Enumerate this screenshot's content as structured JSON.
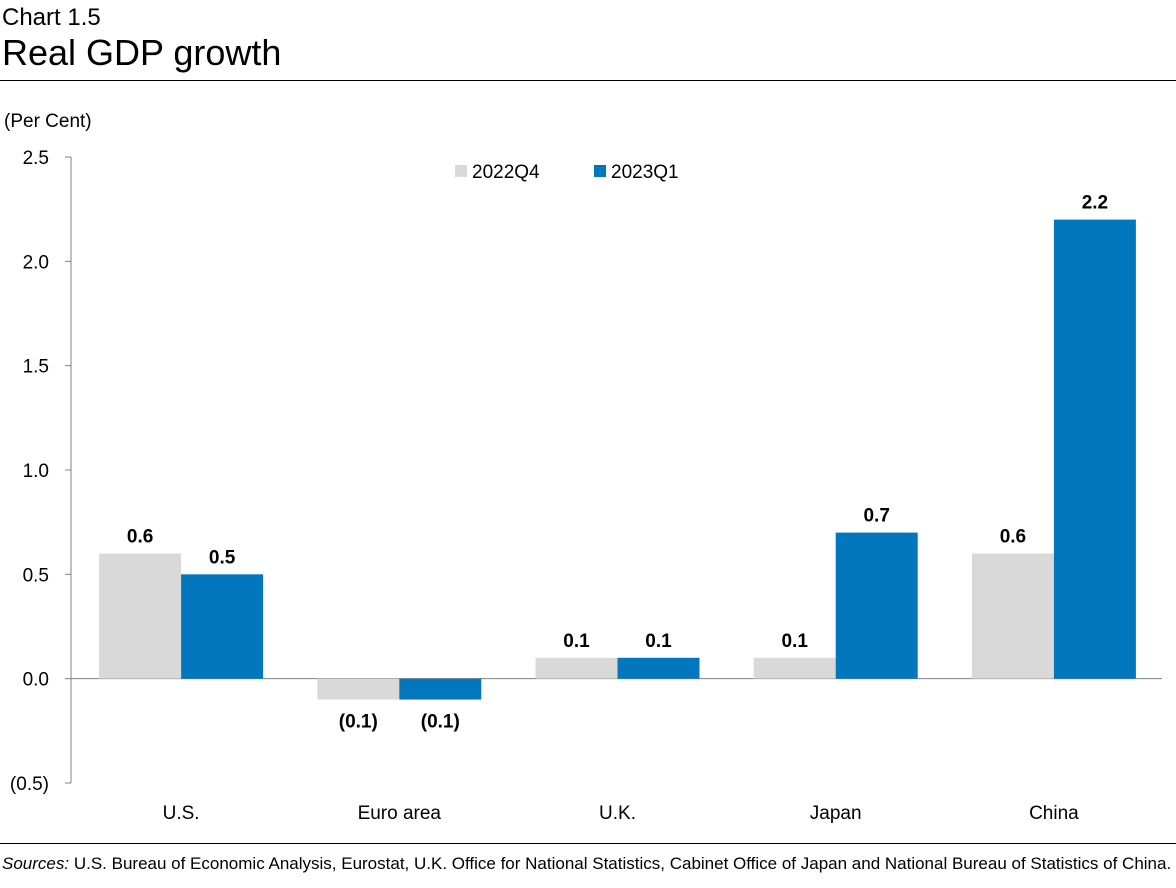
{
  "header": {
    "chart_number": "Chart 1.5",
    "title": "Real GDP growth"
  },
  "footer": {
    "sources_lead": "Sources:",
    "sources_text": "U.S. Bureau of Economic Analysis, Eurostat, U.K. Office for National Statistics, Cabinet Office of Japan and National Bureau of Statistics of China."
  },
  "chart_data": {
    "type": "bar",
    "title": "Real GDP growth",
    "ylabel": "(Per Cent)",
    "xlabel": "",
    "ylim": [
      -0.5,
      2.5
    ],
    "yticks": [
      2.5,
      2.0,
      1.5,
      1.0,
      0.5,
      0.0,
      -0.5
    ],
    "ytick_labels": [
      "2.5",
      "2.0",
      "1.5",
      "1.0",
      "0.5",
      "0.0",
      "(0.5)"
    ],
    "categories": [
      "U.S.",
      "Euro area",
      "U.K.",
      "Japan",
      "China"
    ],
    "series": [
      {
        "name": "2022Q4",
        "color": "#d9d9d9",
        "values": [
          0.6,
          -0.1,
          0.1,
          0.1,
          0.6
        ],
        "labels": [
          "0.6",
          "(0.1)",
          "0.1",
          "0.1",
          "0.6"
        ]
      },
      {
        "name": "2023Q1",
        "color": "#0277bd",
        "values": [
          0.5,
          -0.1,
          0.1,
          0.7,
          2.2
        ],
        "labels": [
          "0.5",
          "(0.1)",
          "0.1",
          "0.7",
          "2.2"
        ]
      }
    ],
    "legend": "top-center",
    "grid": false
  }
}
